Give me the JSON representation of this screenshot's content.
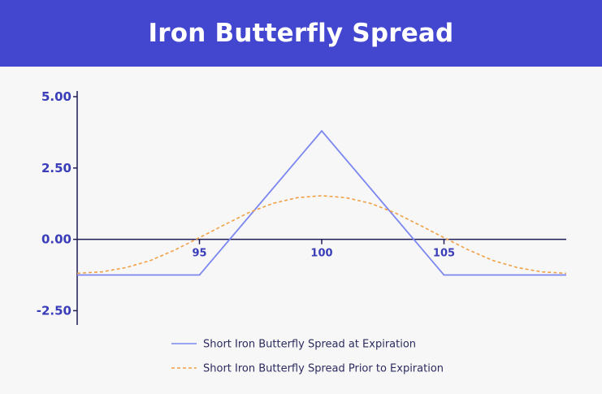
{
  "header": {
    "title": "Iron Butterfly Spread"
  },
  "colors": {
    "header_bg": "#4346cf",
    "axis": "#1c1b55",
    "tick_label": "#3a3db8",
    "expiration_line": "#7b86f0",
    "prior_line": "#f0a045",
    "legend_text": "#2b2b5e"
  },
  "chart_data": {
    "type": "line",
    "title": "Iron Butterfly Spread",
    "xlabel": "",
    "ylabel": "",
    "xlim": [
      90,
      110
    ],
    "ylim": [
      -3,
      5
    ],
    "yticks": [
      5.0,
      2.5,
      0.0,
      -2.5
    ],
    "ytick_labels": [
      "5.00",
      "2.50",
      "0.00",
      "-2.50"
    ],
    "xticks": [
      95,
      100,
      105
    ],
    "xtick_labels": [
      "95",
      "100",
      "105"
    ],
    "grid": false,
    "legend_position": "bottom",
    "series": [
      {
        "name": "Short Iron Butterfly Spread at Expiration",
        "style": "solid",
        "x": [
          90,
          95,
          100,
          105,
          110
        ],
        "y": [
          -1.25,
          -1.25,
          3.8,
          -1.25,
          -1.25
        ]
      },
      {
        "name": "Short Iron Butterfly Spread Prior to Expiration",
        "style": "dashed",
        "x": [
          90,
          91,
          92,
          93,
          94,
          95,
          96,
          97,
          98,
          99,
          100,
          101,
          102,
          103,
          104,
          105,
          106,
          107,
          108,
          109,
          110
        ],
        "y": [
          -1.19,
          -1.14,
          -0.99,
          -0.74,
          -0.37,
          0.06,
          0.5,
          0.93,
          1.26,
          1.46,
          1.53,
          1.46,
          1.26,
          0.93,
          0.5,
          0.06,
          -0.37,
          -0.74,
          -0.99,
          -1.14,
          -1.19
        ]
      }
    ]
  }
}
